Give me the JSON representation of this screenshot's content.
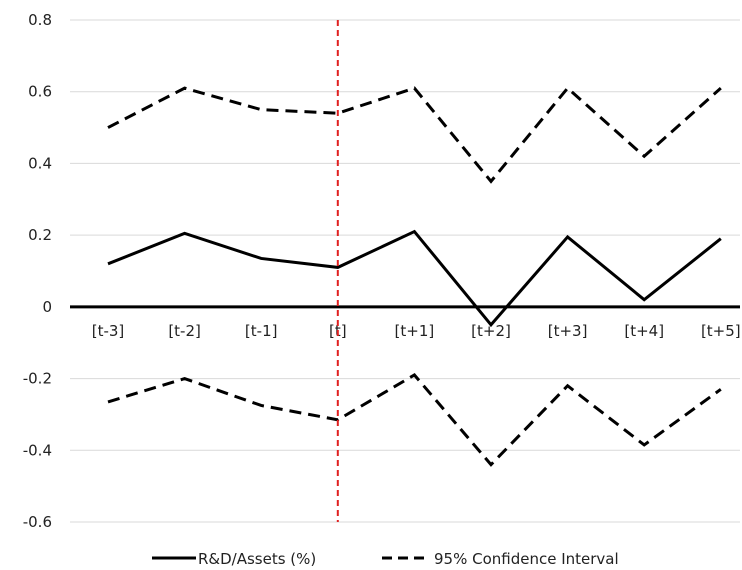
{
  "chart_data": {
    "type": "line",
    "categories": [
      "[t-3]",
      "[t-2]",
      "[t-1]",
      "[t]",
      "[t+1]",
      "[t+2]",
      "[t+3]",
      "[t+4]",
      "[t+5]"
    ],
    "y_ticks": [
      "0.8",
      "0.6",
      "0.4",
      "0.2",
      "0",
      "-0.2",
      "-0.4",
      "-0.6"
    ],
    "ylim": [
      -0.6,
      0.8
    ],
    "grid": true,
    "legend_position": "bottom",
    "event_marker_category": "[t]",
    "colors": {
      "series": "#000000",
      "marker": "#e02020",
      "grid": "#d9d9d9"
    },
    "series": [
      {
        "name": "R&D/Assets (%)",
        "style": "solid",
        "values": [
          0.12,
          0.205,
          0.135,
          0.11,
          0.21,
          -0.05,
          0.195,
          0.02,
          0.19
        ]
      },
      {
        "name": "95% Confidence Interval",
        "style": "dashed",
        "values": [
          0.5,
          0.61,
          0.55,
          0.54,
          0.61,
          0.35,
          0.61,
          0.42,
          0.61
        ]
      },
      {
        "name": "95% Confidence Interval",
        "style": "dashed",
        "values": [
          -0.265,
          -0.2,
          -0.275,
          -0.315,
          -0.19,
          -0.44,
          -0.22,
          -0.385,
          -0.23
        ]
      }
    ],
    "legend": [
      "R&D/Assets (%)",
      "95% Confidence Interval"
    ]
  }
}
